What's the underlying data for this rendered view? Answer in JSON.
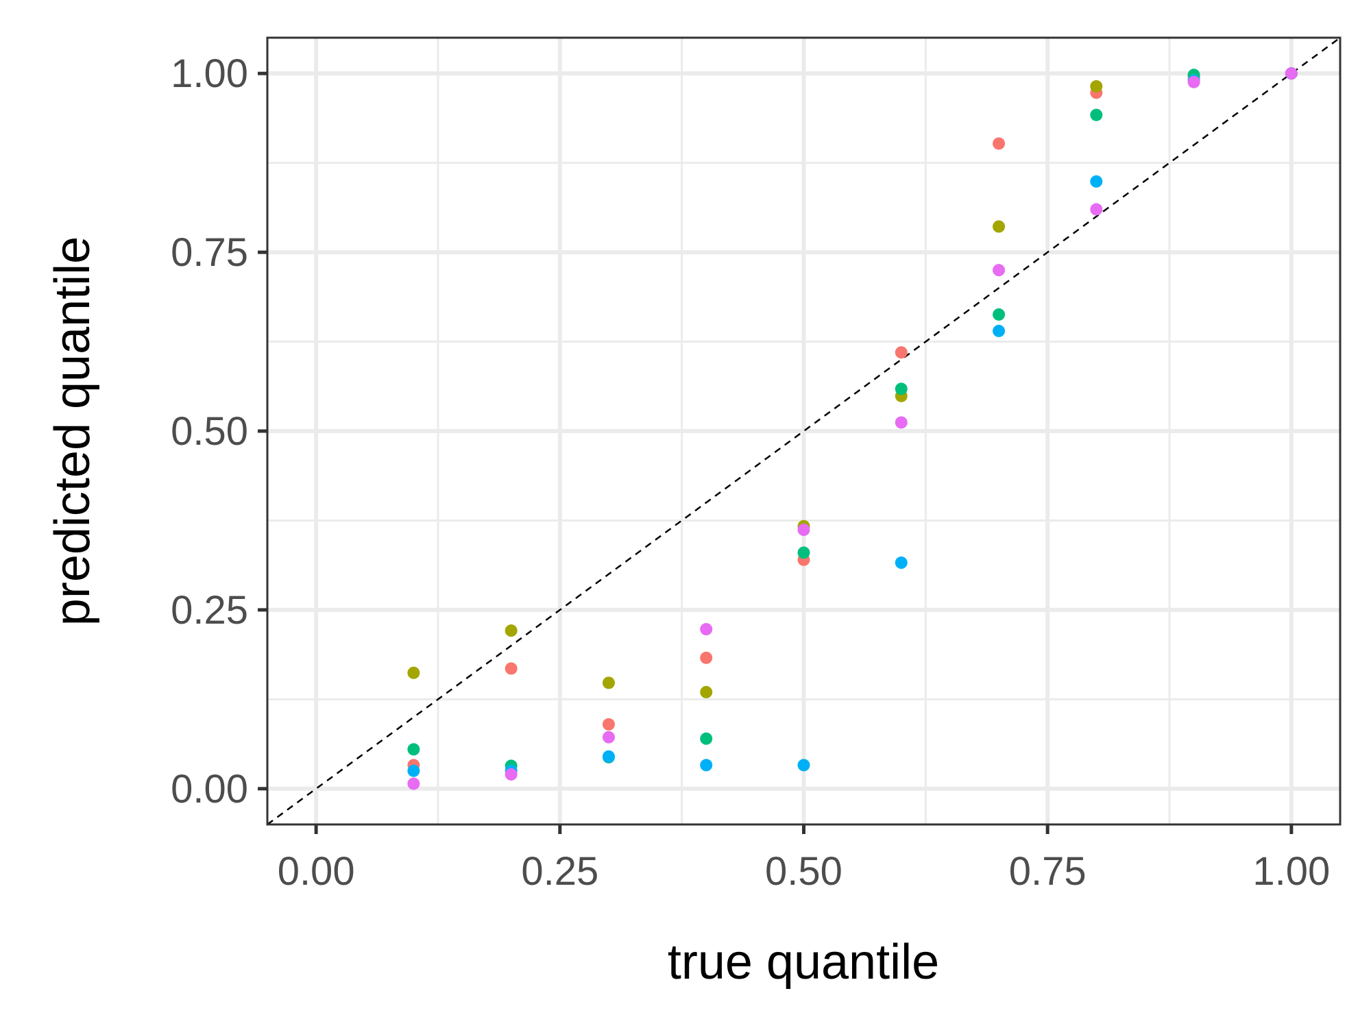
{
  "chart_data": {
    "type": "scatter",
    "title": "",
    "xlabel": "true quantile",
    "ylabel": "predicted quantile",
    "xlim": [
      -0.05,
      1.05
    ],
    "ylim": [
      -0.05,
      1.05
    ],
    "x_ticks": [
      "0.00",
      "0.25",
      "0.50",
      "0.75",
      "1.00"
    ],
    "y_ticks": [
      "0.00",
      "0.25",
      "0.50",
      "0.75",
      "1.00"
    ],
    "grid": true,
    "legend": "none",
    "reference_line": {
      "style": "dashed",
      "color": "#000000",
      "from": [
        -0.05,
        -0.05
      ],
      "to": [
        1.05,
        1.05
      ]
    },
    "series": [
      {
        "color": "#F8766D",
        "points": [
          [
            0.1,
            0.033
          ],
          [
            0.2,
            0.168
          ],
          [
            0.3,
            0.09
          ],
          [
            0.4,
            0.183
          ],
          [
            0.5,
            0.32
          ],
          [
            0.6,
            0.61
          ],
          [
            0.7,
            0.902
          ],
          [
            0.8,
            0.973
          ],
          [
            0.9,
            0.993
          ],
          [
            1.0,
            1.0
          ]
        ]
      },
      {
        "color": "#A3A500",
        "points": [
          [
            0.1,
            0.162
          ],
          [
            0.2,
            0.221
          ],
          [
            0.3,
            0.148
          ],
          [
            0.4,
            0.135
          ],
          [
            0.5,
            0.367
          ],
          [
            0.6,
            0.549
          ],
          [
            0.7,
            0.786
          ],
          [
            0.8,
            0.982
          ],
          [
            0.9,
            0.997
          ],
          [
            1.0,
            1.0
          ]
        ]
      },
      {
        "color": "#00BF7D",
        "points": [
          [
            0.1,
            0.055
          ],
          [
            0.2,
            0.032
          ],
          [
            0.3,
            0.044
          ],
          [
            0.4,
            0.07
          ],
          [
            0.5,
            0.33
          ],
          [
            0.6,
            0.559
          ],
          [
            0.7,
            0.663
          ],
          [
            0.8,
            0.942
          ],
          [
            0.9,
            0.998
          ],
          [
            1.0,
            1.0
          ]
        ]
      },
      {
        "color": "#00B0F6",
        "points": [
          [
            0.1,
            0.025
          ],
          [
            0.2,
            0.025
          ],
          [
            0.3,
            0.045
          ],
          [
            0.4,
            0.033
          ],
          [
            0.5,
            0.033
          ],
          [
            0.6,
            0.316
          ],
          [
            0.7,
            0.64
          ],
          [
            0.8,
            0.849
          ],
          [
            0.9,
            0.99
          ],
          [
            1.0,
            1.0
          ]
        ]
      },
      {
        "color": "#E76BF3",
        "points": [
          [
            0.1,
            0.007
          ],
          [
            0.2,
            0.02
          ],
          [
            0.3,
            0.072
          ],
          [
            0.4,
            0.223
          ],
          [
            0.5,
            0.362
          ],
          [
            0.6,
            0.512
          ],
          [
            0.7,
            0.725
          ],
          [
            0.8,
            0.81
          ],
          [
            0.9,
            0.988
          ],
          [
            1.0,
            1.0
          ]
        ]
      }
    ]
  }
}
